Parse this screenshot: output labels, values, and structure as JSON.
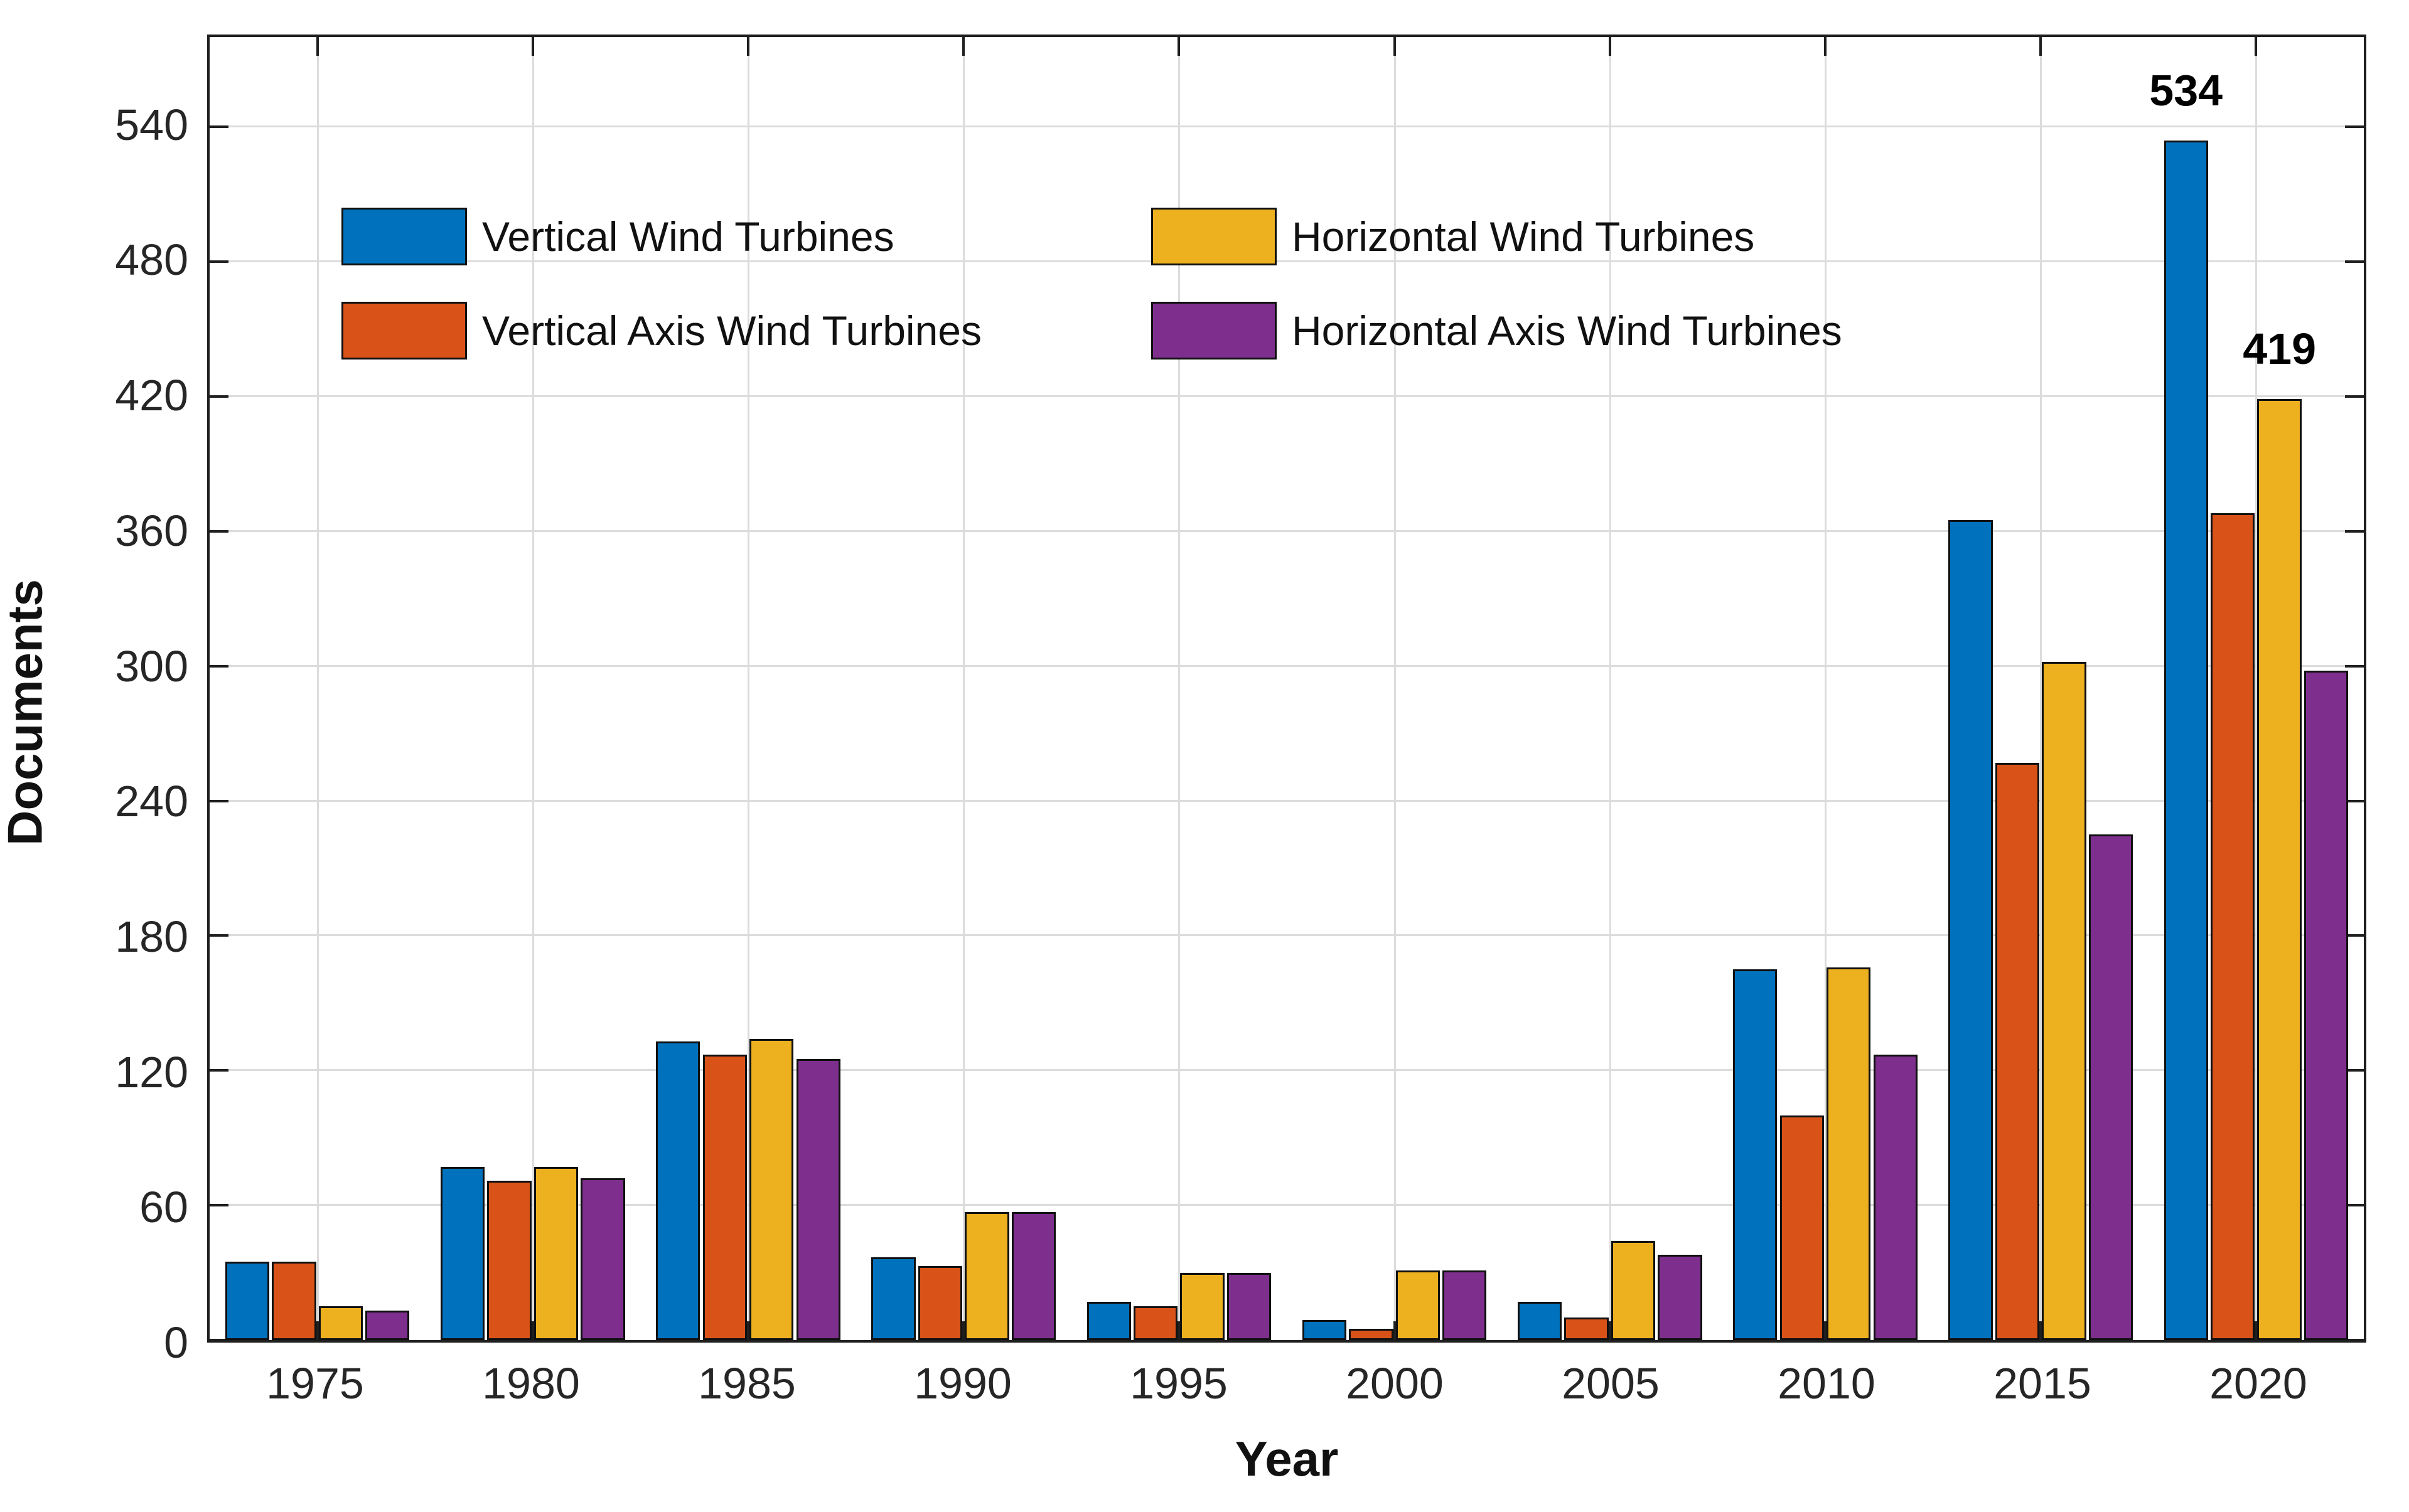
{
  "figure": {
    "background": "#ffffff",
    "axis_color": "#1f1f1f",
    "grid_color": "#dcdcdc",
    "bar_edge_color": "#101010"
  },
  "chart_data": {
    "type": "bar",
    "title": "",
    "xlabel": "Year",
    "ylabel": "Documents",
    "categories": [
      "1975",
      "1980",
      "1985",
      "1990",
      "1995",
      "2000",
      "2005",
      "2010",
      "2015",
      "2020"
    ],
    "series": [
      {
        "name": "Vertical Wind Turbines",
        "color": "#0072BD",
        "values": [
          35,
          77,
          133,
          37,
          17,
          9,
          17,
          165,
          365,
          534
        ]
      },
      {
        "name": "Vertical Axis Wind Turbines",
        "color": "#D95319",
        "values": [
          35,
          71,
          127,
          33,
          15,
          5,
          10,
          100,
          257,
          368
        ]
      },
      {
        "name": "Horizontal Wind Turbines",
        "color": "#EDB120",
        "values": [
          15,
          77,
          134,
          57,
          30,
          31,
          44,
          166,
          302,
          419
        ]
      },
      {
        "name": "Horizontal Axis Wind Turbines",
        "color": "#7E2F8E",
        "values": [
          13,
          72,
          125,
          57,
          30,
          31,
          38,
          127,
          225,
          298
        ]
      }
    ],
    "yticks": [
      0,
      60,
      120,
      180,
      240,
      300,
      360,
      420,
      480,
      540
    ],
    "ylim": [
      0,
      580
    ],
    "grid": "both",
    "legend_position": "upper-left-inside",
    "legend_columns": 2,
    "annotations": [
      {
        "series_index": 0,
        "category_index": 9,
        "text": "534"
      },
      {
        "series_index": 2,
        "category_index": 9,
        "text": "419"
      }
    ]
  }
}
